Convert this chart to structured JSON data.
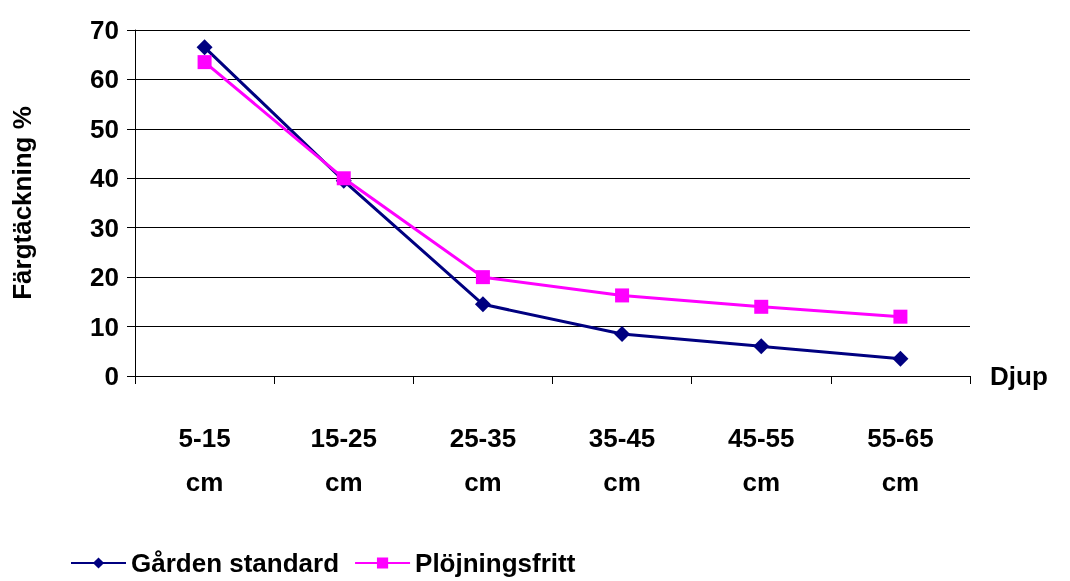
{
  "chart_data": {
    "type": "line",
    "xlabel": "Djup",
    "ylabel": "Färgtäckning %",
    "categories": [
      "5-15 cm",
      "15-25 cm",
      "25-35 cm",
      "35-45 cm",
      "45-55 cm",
      "55-65 cm"
    ],
    "series": [
      {
        "name": "Gården standard",
        "color": "#000080",
        "marker": "diamond",
        "values": [
          66.5,
          39.5,
          14.5,
          8.5,
          6,
          3.5
        ]
      },
      {
        "name": "Plöjningsfritt",
        "color": "#ff00ff",
        "marker": "square",
        "values": [
          63.5,
          40,
          20,
          16.3,
          14,
          12
        ]
      }
    ],
    "ylim": [
      0,
      70
    ],
    "yticks": [
      0,
      10,
      20,
      30,
      40,
      50,
      60,
      70
    ],
    "grid": "y",
    "legend": "bottom"
  }
}
